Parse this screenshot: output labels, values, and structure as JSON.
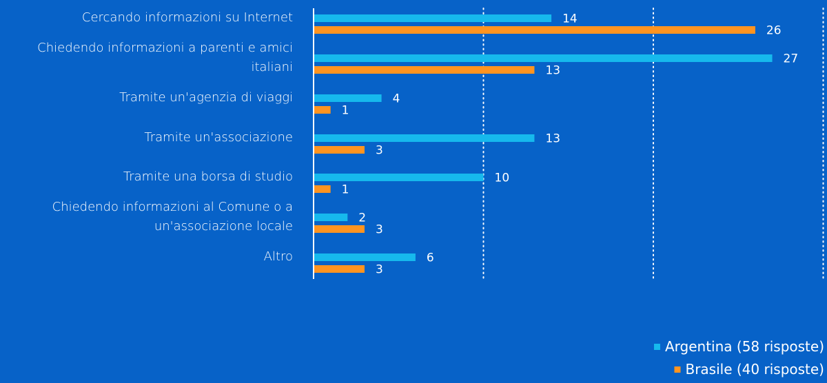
{
  "chart_data": {
    "type": "bar",
    "orientation": "horizontal",
    "categories": [
      [
        "Cercando informazioni su Internet"
      ],
      [
        "Chiedendo informazioni a parenti e amici",
        "italiani"
      ],
      [
        "Tramite un'agenzia di viaggi"
      ],
      [
        "Tramite un'associazione"
      ],
      [
        "Tramite una borsa di studio"
      ],
      [
        "Chiedendo informazioni al Comune o a",
        "un'associazione locale"
      ],
      [
        "Altro"
      ]
    ],
    "series": [
      {
        "name": "Argentina (58 risposte)",
        "color": "#16b9ed",
        "values": [
          14,
          27,
          4,
          13,
          10,
          2,
          6
        ]
      },
      {
        "name": "Brasile (40 risposte)",
        "color": "#ff9420",
        "values": [
          26,
          13,
          1,
          3,
          1,
          3,
          3
        ]
      }
    ],
    "xlim": [
      0,
      30
    ],
    "gridlines": [
      10,
      20,
      30
    ],
    "grid": true,
    "legend_position": "bottom-right",
    "background": "#0762c8",
    "data_labels": true
  }
}
